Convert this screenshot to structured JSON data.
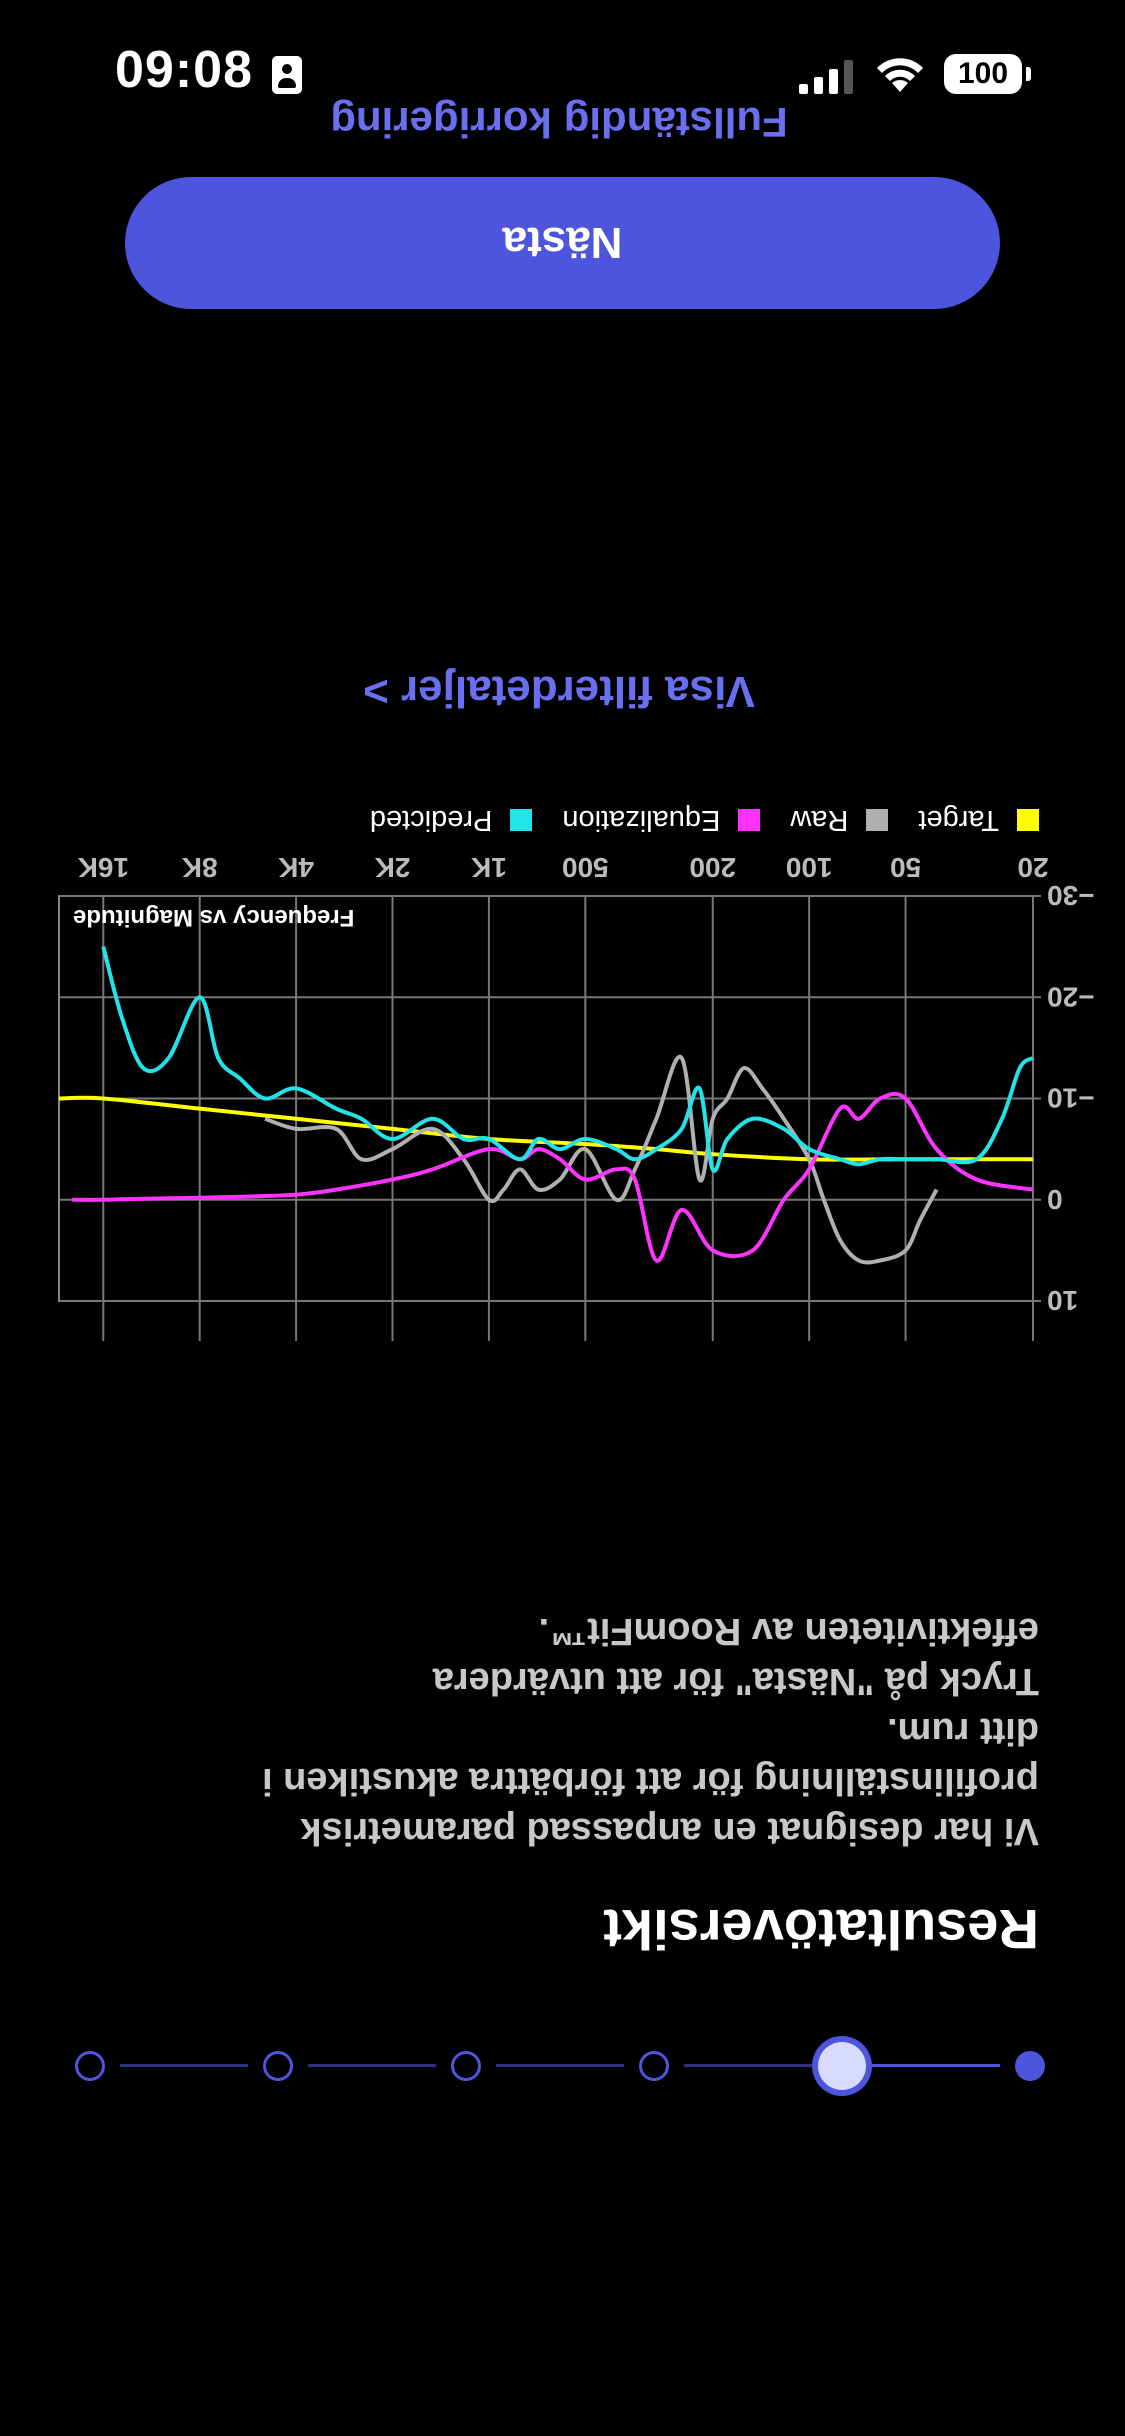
{
  "status_bar": {
    "time": "09:08",
    "battery": "100"
  },
  "stepper": {
    "total": 6,
    "current": 2
  },
  "title": "Resultatöversikt",
  "description": [
    "Vi har designat en anpassad parametrisk",
    "profilinställning för att förbättra akustiken i",
    "ditt rum.",
    "Tryck på \"Nästa\" för att utvärdera",
    "effektiviteten av RoomFit™."
  ],
  "filter_link": "Visa filterdetaljer >",
  "next_button": "Nästa",
  "footer_title": "Fullständig korrigering",
  "colors": {
    "accent": "#4d55dc",
    "target": "#ffff00",
    "raw": "#b0b0b0",
    "equalization": "#ff33ff",
    "predicted": "#22e3e8"
  },
  "chart_data": {
    "type": "line",
    "title": "Frequency vs Magnitude",
    "x_scale": "log",
    "xlim": [
      20,
      22000
    ],
    "ylim": [
      -30,
      10
    ],
    "ylim_note": "y axis inverted: -30 top, 10 bottom (as displayed)",
    "x_tick_labels": [
      "20",
      "50",
      "100",
      "200",
      "500",
      "1K",
      "2K",
      "4K",
      "8K",
      "16K"
    ],
    "x_ticks": [
      20,
      50,
      100,
      200,
      500,
      1000,
      2000,
      4000,
      8000,
      16000
    ],
    "y_tick_labels": [
      "−30",
      "−20",
      "−10",
      "0",
      "10"
    ],
    "y_ticks": [
      -30,
      -20,
      -10,
      0,
      10
    ],
    "series": [
      {
        "name": "Target",
        "color": "#ffff00",
        "x": [
          20,
          30,
          50,
          100,
          200,
          300,
          500,
          1000,
          2000,
          4000,
          8000,
          16000,
          22000
        ],
        "y": [
          -4,
          -4,
          -4,
          -4,
          -4.5,
          -5,
          -5.5,
          -6,
          -7,
          -8,
          -9,
          -10,
          -10
        ]
      },
      {
        "name": "Raw",
        "color": "#b0b0b0",
        "x": [
          40,
          45,
          50,
          60,
          70,
          80,
          90,
          100,
          120,
          140,
          160,
          180,
          200,
          220,
          250,
          300,
          350,
          400,
          500,
          600,
          700,
          800,
          900,
          1000,
          1200,
          1500,
          2000,
          2500,
          3000,
          4000,
          5000
        ],
        "y": [
          -1,
          2,
          5,
          6,
          6,
          4,
          0,
          -4,
          -8,
          -11,
          -13,
          -10,
          -8,
          -2,
          -14,
          -8,
          -3,
          0,
          -5,
          -2,
          -1,
          -3,
          -1,
          0,
          -4,
          -7,
          -5,
          -4,
          -7,
          -7,
          -8
        ]
      },
      {
        "name": "Equalization",
        "color": "#ff33ff",
        "x": [
          20,
          30,
          40,
          50,
          60,
          70,
          80,
          100,
          120,
          150,
          200,
          250,
          300,
          350,
          400,
          500,
          600,
          700,
          800,
          1000,
          1500,
          2000,
          3000,
          4000,
          6000,
          8000,
          12000,
          16000,
          20000
        ],
        "y": [
          -1,
          -2,
          -5,
          -10,
          -10,
          -8,
          -9,
          -3,
          0,
          5,
          5,
          1,
          6,
          -2,
          -3,
          -2,
          -4,
          -5,
          -4,
          -5,
          -3,
          -2,
          -1,
          -0.5,
          -0.3,
          -0.2,
          -0.1,
          0,
          0
        ]
      },
      {
        "name": "Predicted",
        "color": "#22e3e8",
        "x": [
          20,
          22,
          25,
          30,
          40,
          50,
          60,
          70,
          80,
          100,
          120,
          150,
          180,
          200,
          220,
          250,
          300,
          350,
          400,
          500,
          600,
          700,
          800,
          1000,
          1200,
          1500,
          2000,
          2500,
          3000,
          4000,
          5000,
          6000,
          7000,
          8000,
          10000,
          12000,
          14000,
          16000
        ],
        "y": [
          -14,
          -13,
          -8,
          -4,
          -4,
          -4,
          -4,
          -3.5,
          -4,
          -5,
          -7,
          -8,
          -6,
          -3,
          -11,
          -7,
          -5,
          -4,
          -5,
          -6,
          -5,
          -6,
          -4,
          -6,
          -6,
          -8,
          -6,
          -8,
          -9,
          -11,
          -10,
          -12,
          -14,
          -20,
          -14,
          -13,
          -18,
          -25
        ]
      }
    ]
  }
}
